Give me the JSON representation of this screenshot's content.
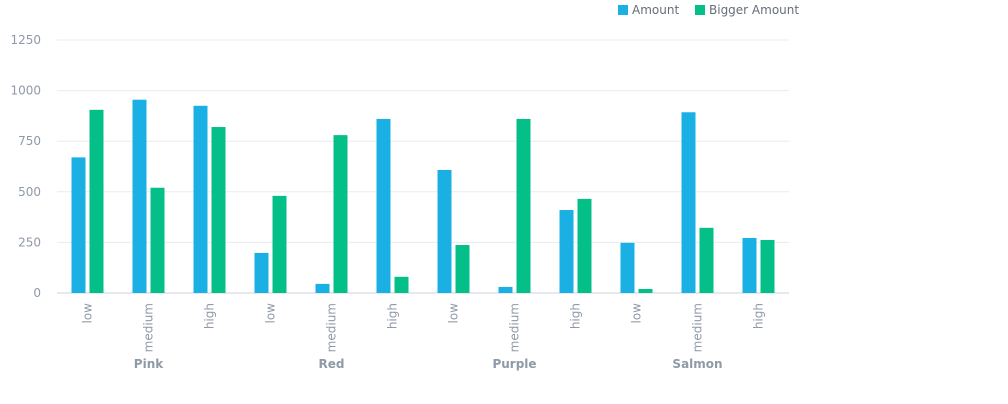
{
  "chart_data": {
    "type": "bar",
    "title": "",
    "xlabel": "",
    "ylabel": "",
    "ylim": [
      0,
      1250
    ],
    "yticks": [
      0,
      250,
      500,
      750,
      1000,
      1250
    ],
    "grid": true,
    "legend_position": "top-right",
    "groups": [
      "Pink",
      "Red",
      "Purple",
      "Salmon"
    ],
    "categories": [
      {
        "group": "Pink",
        "label": "low"
      },
      {
        "group": "Pink",
        "label": "medium"
      },
      {
        "group": "Pink",
        "label": "high"
      },
      {
        "group": "Red",
        "label": "low"
      },
      {
        "group": "Red",
        "label": "medium"
      },
      {
        "group": "Red",
        "label": "high"
      },
      {
        "group": "Purple",
        "label": "low"
      },
      {
        "group": "Purple",
        "label": "medium"
      },
      {
        "group": "Purple",
        "label": "high"
      },
      {
        "group": "Salmon",
        "label": "low"
      },
      {
        "group": "Salmon",
        "label": "medium"
      },
      {
        "group": "Salmon",
        "label": "high"
      }
    ],
    "series": [
      {
        "name": "Amount",
        "color": "#1ab0e3",
        "values": [
          670,
          955,
          925,
          198,
          45,
          860,
          608,
          30,
          410,
          248,
          893,
          272
        ]
      },
      {
        "name": "Bigger Amount",
        "color": "#05bf88",
        "values": [
          905,
          520,
          820,
          480,
          780,
          80,
          237,
          860,
          465,
          20,
          322,
          262
        ]
      }
    ]
  }
}
